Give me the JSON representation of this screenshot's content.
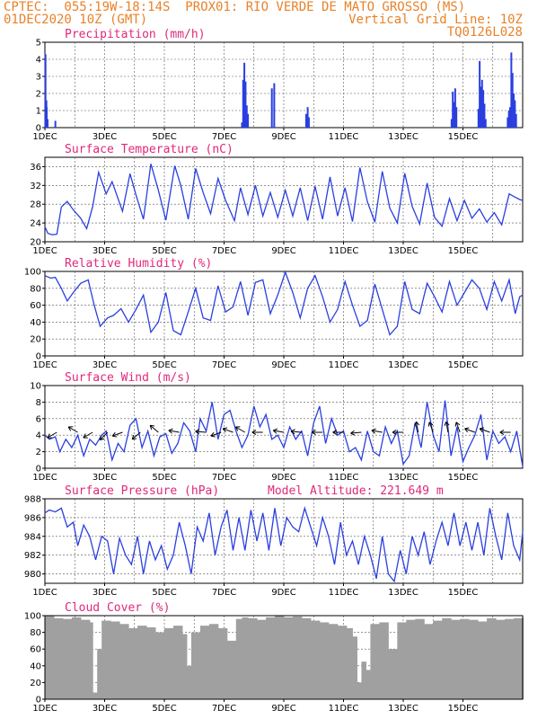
{
  "header": {
    "line1_left": "CPTEC:  055:19W-18:14S  PROX01: RIO VERDE DE MATO GROSSO (MS)",
    "line2_left": "01DEC2020 10Z (GMT)",
    "line2_right": "Vertical Grid Line: 10Z",
    "line3_right": "TQ0126L028"
  },
  "colors": {
    "header": "#e8822a",
    "title": "#e0287a",
    "series": "#2a3fe0",
    "cloud": "#a0a0a0",
    "arrow": "#000000"
  },
  "x_ticks": [
    "1DEC",
    "3DEC",
    "5DEC",
    "7DEC",
    "9DEC",
    "11DEC",
    "13DEC",
    "15DEC"
  ],
  "chart_data": [
    {
      "type": "bar",
      "title": "Precipitation (mm/h)",
      "ylim": [
        0,
        5
      ],
      "yticks": [
        0,
        1,
        2,
        3,
        4,
        5
      ],
      "x_unit": "days since 01DEC2020 10Z",
      "x": [
        0.02,
        0.05,
        0.06,
        0.09,
        0.35,
        6.6,
        6.64,
        6.68,
        6.72,
        6.76,
        6.8,
        7.6,
        7.68,
        8.75,
        8.8,
        8.84,
        13.62,
        13.66,
        13.7,
        13.74,
        13.78,
        14.52,
        14.56,
        14.6,
        14.64,
        14.68,
        14.72,
        14.76,
        15.5,
        15.54,
        15.58,
        15.62,
        15.66,
        15.7,
        15.74,
        15.78
      ],
      "values": [
        4.3,
        1.6,
        1.2,
        0.5,
        0.4,
        0.3,
        2.8,
        3.8,
        2.7,
        1.3,
        0.8,
        2.3,
        2.6,
        0.8,
        1.2,
        0.6,
        0.5,
        2.1,
        1.5,
        2.3,
        1.2,
        1.1,
        3.9,
        2.4,
        2.8,
        2.2,
        1.4,
        0.5,
        0.6,
        1.0,
        1.2,
        4.4,
        3.2,
        2.0,
        1.6,
        0.8
      ]
    },
    {
      "type": "line",
      "title": "Surface Temperature (nC)",
      "ylim": [
        20,
        38
      ],
      "yticks": [
        20,
        24,
        28,
        32,
        36
      ],
      "x_unit": "days since 01DEC2020 10Z",
      "x": [
        0,
        0.1,
        0.25,
        0.4,
        0.55,
        0.75,
        0.95,
        1.2,
        1.4,
        1.6,
        1.8,
        2.05,
        2.25,
        2.6,
        2.85,
        3.05,
        3.3,
        3.55,
        3.8,
        4.05,
        4.35,
        4.55,
        4.8,
        5.05,
        5.3,
        5.55,
        5.8,
        6.05,
        6.35,
        6.55,
        6.8,
        7.05,
        7.3,
        7.55,
        7.8,
        8.05,
        8.3,
        8.55,
        8.8,
        9.05,
        9.3,
        9.55,
        9.8,
        10.05,
        10.3,
        10.55,
        10.8,
        11.05,
        11.3,
        11.55,
        11.8,
        12.05,
        12.3,
        12.55,
        12.8,
        13.05,
        13.3,
        13.55,
        13.8,
        14.05,
        14.3,
        14.55,
        14.8,
        15.05,
        15.3,
        15.55,
        15.75,
        15.9,
        16.0
      ],
      "values": [
        23.2,
        21.8,
        21.5,
        21.6,
        27.4,
        28.6,
        26.8,
        25.0,
        22.8,
        27.5,
        34.8,
        30.2,
        32.8,
        26.5,
        34.5,
        30.0,
        24.8,
        36.6,
        31.0,
        24.6,
        36.2,
        32.0,
        24.8,
        35.6,
        30.5,
        26.0,
        33.5,
        28.8,
        24.5,
        31.5,
        25.8,
        32.0,
        25.5,
        30.5,
        25.2,
        31.0,
        25.5,
        31.5,
        24.5,
        31.8,
        24.8,
        33.8,
        25.5,
        31.5,
        24.3,
        35.8,
        28.5,
        24.2,
        35.0,
        27.2,
        24.0,
        34.6,
        27.5,
        23.8,
        32.5,
        25.2,
        23.3,
        29.2,
        24.5,
        28.8,
        25.0,
        27.0,
        24.2,
        26.2,
        23.6,
        30.2,
        29.5,
        29.0,
        28.8
      ]
    },
    {
      "type": "line",
      "title": "Relative Humidity (%)",
      "ylim": [
        0,
        100
      ],
      "yticks": [
        0,
        20,
        40,
        60,
        80,
        100
      ],
      "x_unit": "days since 01DEC2020 10Z",
      "x": [
        0,
        0.2,
        0.35,
        0.55,
        0.75,
        0.95,
        1.2,
        1.45,
        1.65,
        1.85,
        2.1,
        2.3,
        2.55,
        2.8,
        3.05,
        3.3,
        3.55,
        3.8,
        4.05,
        4.3,
        4.55,
        4.8,
        5.05,
        5.3,
        5.55,
        5.8,
        6.05,
        6.3,
        6.55,
        6.8,
        7.05,
        7.3,
        7.55,
        7.8,
        8.05,
        8.3,
        8.55,
        8.8,
        9.05,
        9.3,
        9.55,
        9.8,
        10.05,
        10.3,
        10.55,
        10.8,
        11.05,
        11.3,
        11.55,
        11.8,
        12.05,
        12.3,
        12.55,
        12.8,
        13.05,
        13.3,
        13.55,
        13.8,
        14.05,
        14.3,
        14.55,
        14.8,
        15.05,
        15.3,
        15.55,
        15.75,
        15.9,
        16.0
      ],
      "values": [
        95,
        92,
        93,
        80,
        65,
        75,
        86,
        90,
        60,
        35,
        45,
        48,
        56,
        40,
        55,
        72,
        28,
        40,
        75,
        30,
        25,
        52,
        80,
        45,
        42,
        83,
        52,
        58,
        88,
        48,
        87,
        90,
        50,
        72,
        99,
        75,
        45,
        80,
        95,
        70,
        40,
        55,
        88,
        60,
        35,
        42,
        85,
        55,
        25,
        35,
        88,
        55,
        50,
        86,
        70,
        52,
        88,
        60,
        75,
        90,
        80,
        55,
        88,
        65,
        90,
        50,
        70,
        72
      ]
    },
    {
      "type": "line",
      "title": "Surface Wind (m/s)",
      "ylim": [
        0,
        10
      ],
      "yticks": [
        0,
        2,
        4,
        6,
        8,
        10
      ],
      "x_unit": "days since 01DEC2020 10Z",
      "x": [
        0,
        0.15,
        0.35,
        0.5,
        0.7,
        0.9,
        1.1,
        1.3,
        1.5,
        1.7,
        1.9,
        2.05,
        2.25,
        2.45,
        2.65,
        2.85,
        3.05,
        3.25,
        3.45,
        3.65,
        3.85,
        4.05,
        4.25,
        4.45,
        4.65,
        4.85,
        5.05,
        5.2,
        5.4,
        5.6,
        5.8,
        6.0,
        6.2,
        6.4,
        6.6,
        6.8,
        7.0,
        7.2,
        7.4,
        7.6,
        7.8,
        8.0,
        8.2,
        8.4,
        8.6,
        8.8,
        9.0,
        9.2,
        9.4,
        9.6,
        9.8,
        10.0,
        10.2,
        10.4,
        10.6,
        10.8,
        11.0,
        11.2,
        11.4,
        11.6,
        11.8,
        12.0,
        12.2,
        12.4,
        12.6,
        12.8,
        13.0,
        13.2,
        13.4,
        13.6,
        13.8,
        14.0,
        14.2,
        14.4,
        14.6,
        14.8,
        15.0,
        15.2,
        15.4,
        15.6,
        15.8,
        16.0
      ],
      "values": [
        4.0,
        3.5,
        3.8,
        2.0,
        3.5,
        2.5,
        4.0,
        1.5,
        3.5,
        2.8,
        4.0,
        4.5,
        1.0,
        3.0,
        2.0,
        5.2,
        6.0,
        2.5,
        4.5,
        1.5,
        3.8,
        4.2,
        1.8,
        3.0,
        5.5,
        4.5,
        2.0,
        6.0,
        4.5,
        8.0,
        3.5,
        6.5,
        7.0,
        4.5,
        2.5,
        4.0,
        7.5,
        5.0,
        6.5,
        3.5,
        4.0,
        2.5,
        5.0,
        3.5,
        4.5,
        1.5,
        5.5,
        7.5,
        3.0,
        6.0,
        4.0,
        4.5,
        2.0,
        2.5,
        1.0,
        4.5,
        2.0,
        1.5,
        5.0,
        3.0,
        4.5,
        0.5,
        1.5,
        5.5,
        2.5,
        8.0,
        4.0,
        2.0,
        8.2,
        1.5,
        5.0,
        0.8,
        2.5,
        4.0,
        6.5,
        1.0,
        4.5,
        3.0,
        3.8,
        2.0,
        4.5,
        0.2
      ]
    },
    {
      "type": "line",
      "title": "Surface Pressure (hPa)",
      "annotation": "Model Altitude: 221.649  m",
      "ylim": [
        979,
        988
      ],
      "yticks": [
        980,
        982,
        984,
        986,
        988
      ],
      "x_unit": "days since 01DEC2020 10Z",
      "x": [
        0,
        0.15,
        0.35,
        0.55,
        0.75,
        0.95,
        1.1,
        1.3,
        1.5,
        1.7,
        1.9,
        2.1,
        2.3,
        2.5,
        2.7,
        2.9,
        3.1,
        3.3,
        3.5,
        3.7,
        3.9,
        4.1,
        4.3,
        4.5,
        4.7,
        4.9,
        5.1,
        5.3,
        5.5,
        5.7,
        5.9,
        6.1,
        6.3,
        6.5,
        6.7,
        6.9,
        7.1,
        7.3,
        7.5,
        7.7,
        7.9,
        8.1,
        8.3,
        8.5,
        8.7,
        8.9,
        9.1,
        9.3,
        9.5,
        9.7,
        9.9,
        10.1,
        10.3,
        10.5,
        10.7,
        10.9,
        11.1,
        11.3,
        11.5,
        11.7,
        11.9,
        12.1,
        12.3,
        12.5,
        12.7,
        12.9,
        13.1,
        13.3,
        13.5,
        13.7,
        13.9,
        14.1,
        14.3,
        14.5,
        14.7,
        14.9,
        15.1,
        15.3,
        15.5,
        15.7,
        15.9,
        16.0
      ],
      "values": [
        986.5,
        986.8,
        986.6,
        987.0,
        985.0,
        985.5,
        983.0,
        985.2,
        984.0,
        981.5,
        984.0,
        983.5,
        980.0,
        983.8,
        982.0,
        981.0,
        984.0,
        980.0,
        983.5,
        981.5,
        983.0,
        980.5,
        982.0,
        985.5,
        983.0,
        980.0,
        985.0,
        983.5,
        986.5,
        982.0,
        985.0,
        986.8,
        982.5,
        986.0,
        982.5,
        986.8,
        983.5,
        986.5,
        982.5,
        987.0,
        983.0,
        986.0,
        985.0,
        984.5,
        987.0,
        985.0,
        983.0,
        986.0,
        984.0,
        981.0,
        985.5,
        982.0,
        983.5,
        981.0,
        984.0,
        982.0,
        979.5,
        984.0,
        980.0,
        979.2,
        982.5,
        980.0,
        984.0,
        982.0,
        984.5,
        981.0,
        983.5,
        985.5,
        983.0,
        986.5,
        983.0,
        985.5,
        982.5,
        985.5,
        982.0,
        987.0,
        984.0,
        981.5,
        986.5,
        983.0,
        981.5,
        984.5
      ]
    },
    {
      "type": "area",
      "title": "Cloud Cover (%)",
      "ylim": [
        0,
        100
      ],
      "yticks": [
        0,
        20,
        40,
        60,
        80,
        100
      ],
      "x_unit": "days since 01DEC2020 10Z",
      "x": [
        0,
        0.3,
        0.6,
        0.9,
        1.2,
        1.5,
        1.6,
        1.75,
        1.9,
        2.2,
        2.5,
        2.8,
        3.1,
        3.4,
        3.7,
        4.0,
        4.3,
        4.6,
        4.75,
        4.9,
        5.2,
        5.5,
        5.8,
        6.1,
        6.4,
        6.6,
        6.8,
        7.1,
        7.4,
        7.7,
        8.0,
        8.3,
        8.6,
        8.9,
        9.2,
        9.5,
        9.8,
        10.1,
        10.3,
        10.45,
        10.6,
        10.75,
        10.9,
        11.2,
        11.5,
        11.8,
        12.1,
        12.4,
        12.7,
        13.0,
        13.3,
        13.6,
        13.9,
        14.2,
        14.5,
        14.8,
        15.1,
        15.4,
        15.7,
        16.0
      ],
      "values": [
        100,
        97,
        96,
        98,
        95,
        92,
        8,
        60,
        94,
        93,
        90,
        85,
        88,
        86,
        80,
        85,
        88,
        78,
        40,
        80,
        88,
        90,
        85,
        70,
        96,
        98,
        97,
        95,
        98,
        100,
        98,
        99,
        97,
        94,
        92,
        90,
        88,
        85,
        75,
        20,
        45,
        35,
        90,
        92,
        60,
        92,
        95,
        96,
        90,
        94,
        97,
        95,
        96,
        95,
        93,
        97,
        95,
        96,
        97,
        98
      ]
    }
  ]
}
